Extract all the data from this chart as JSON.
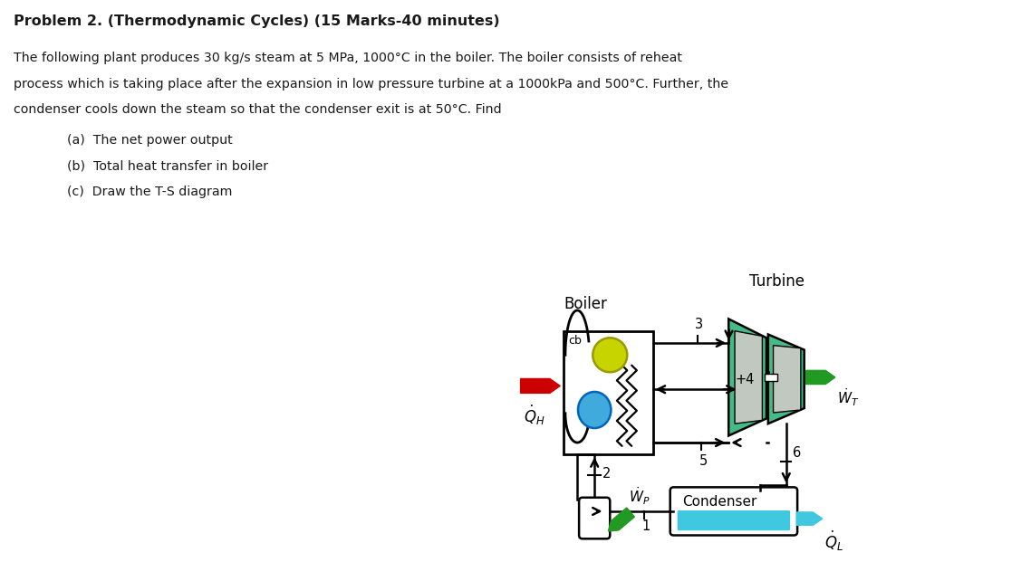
{
  "title": "Problem 2. (Thermodynamic Cycles) (15 Marks-40 minutes)",
  "line1": "The following plant produces 30 kg/s steam at 5 MPa, 1000°C in the boiler. The boiler consists of reheat",
  "line2": "process which is taking place after the expansion in low pressure turbine at a 1000kPa and 500°C. Further, the",
  "line3": "condenser cools down the steam so that the condenser exit is at 50°C. Find",
  "item_a": "(a)  The net power output",
  "item_b": "(b)  Total heat transfer in boiler",
  "item_c": "(c)  Draw the T-S diagram",
  "bg_color": "#ffffff",
  "text_color": "#1a1a1a",
  "colors": {
    "teal": "#40c8e0",
    "yellow_green": "#c8d400",
    "sky_blue": "#40aadd",
    "red": "#cc0000",
    "dark_green": "#229922",
    "turbine_green": "#44bb88",
    "turbine_green2": "#33aa77",
    "gray_blade": "#c0c8c0",
    "black": "#000000",
    "white": "#ffffff"
  }
}
